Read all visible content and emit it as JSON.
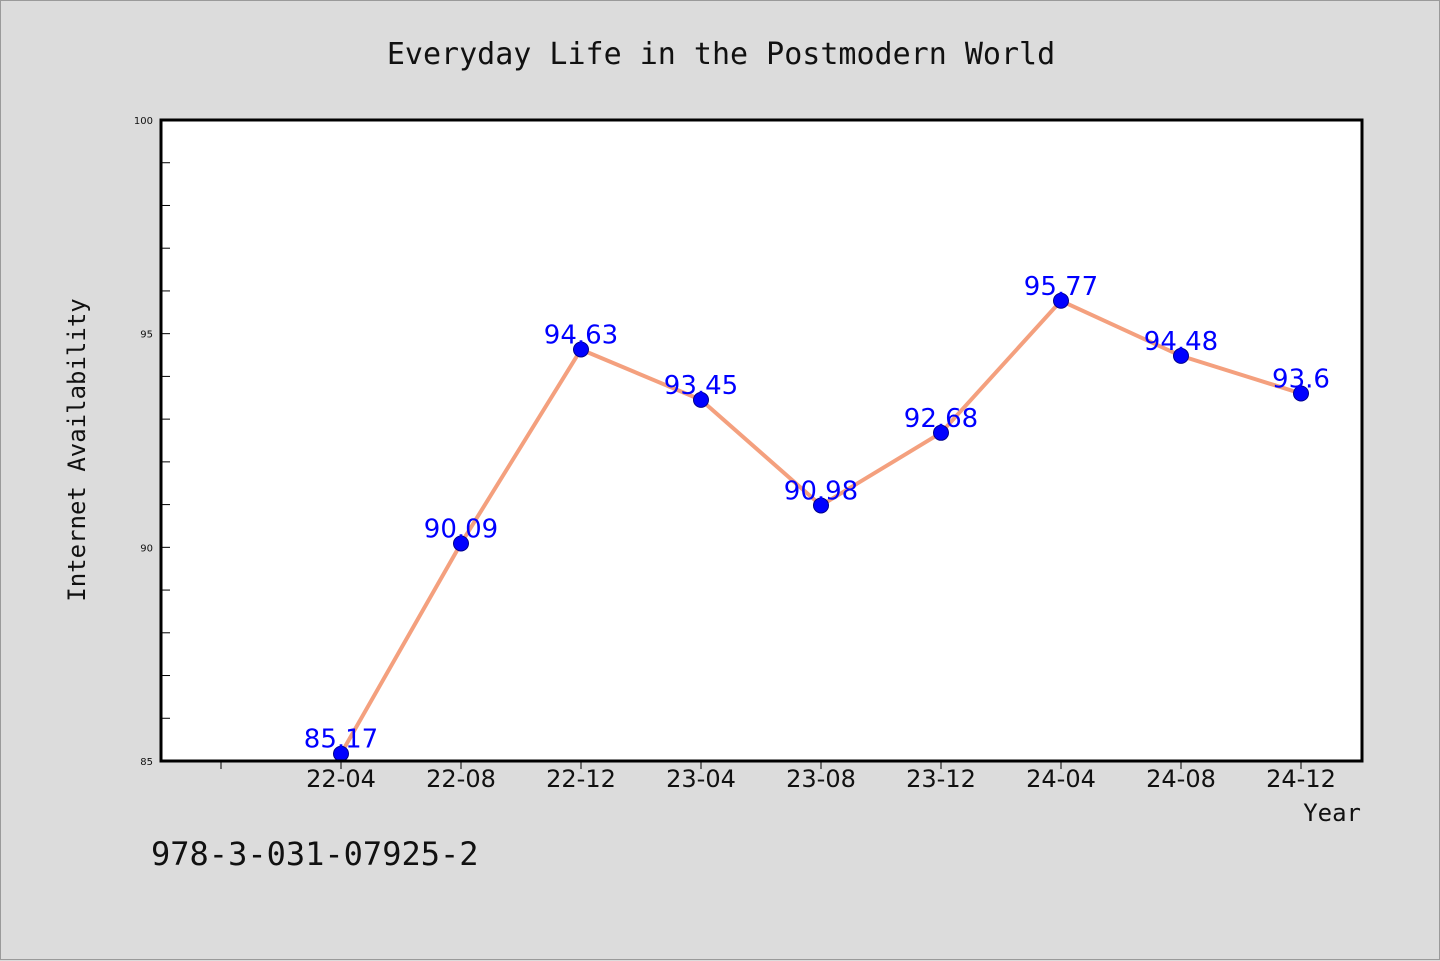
{
  "chart_data": {
    "type": "line",
    "title": "Everyday Life in the Postmodern World",
    "xlabel": "Year",
    "ylabel": "Internet Availability",
    "categories": [
      "22-04",
      "22-08",
      "22-12",
      "23-04",
      "23-08",
      "23-12",
      "24-04",
      "24-08",
      "24-12"
    ],
    "series": [
      {
        "values": [
          85.17,
          90.09,
          94.63,
          93.45,
          90.98,
          92.68,
          95.77,
          94.48,
          93.6
        ]
      }
    ],
    "data_labels": [
      "85.17",
      "90.09",
      "94.63",
      "93.45",
      "90.98",
      "92.68",
      "95.77",
      "94.48",
      "93.6"
    ],
    "ylim": [
      85,
      100
    ],
    "y_ticks": [
      "85",
      "90",
      "95",
      "100"
    ],
    "grid": false,
    "legend": "none",
    "line_color": "#f4a07e",
    "marker_color": "#0000ff",
    "label_color": "#0000ff"
  },
  "footnote": "978-3-031-07925-2"
}
